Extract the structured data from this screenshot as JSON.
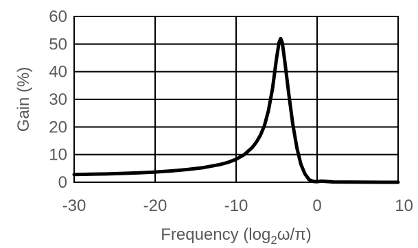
{
  "chart_data": {
    "type": "line",
    "title": "",
    "xlabel": {
      "main": "Frequency (log",
      "sub": "2",
      "rest": "ω/π)"
    },
    "ylabel": "Gain (%)",
    "xlim": [
      -30,
      10
    ],
    "ylim": [
      0,
      60
    ],
    "xticks": [
      -30,
      -20,
      -10,
      0,
      10
    ],
    "yticks": [
      0,
      10,
      20,
      30,
      40,
      50,
      60
    ],
    "xtick_labels": [
      "-30",
      "-20",
      "-10",
      "0",
      "10"
    ],
    "ytick_labels": [
      "0",
      "10",
      "20",
      "30",
      "40",
      "50",
      "60"
    ],
    "grid": true,
    "legend": "none",
    "series": [
      {
        "color": "#000000",
        "x": [
          -30,
          -28,
          -26,
          -24,
          -22,
          -20,
          -18,
          -16,
          -14,
          -12,
          -11,
          -10,
          -9,
          -8,
          -7.5,
          -7,
          -6.5,
          -6,
          -5.5,
          -5,
          -4.7,
          -4.5,
          -4.3,
          -4,
          -3.5,
          -3,
          -2.5,
          -2,
          -1.5,
          -1,
          -0.5,
          0,
          0.5,
          1,
          2,
          4,
          6,
          8,
          10
        ],
        "y": [
          2.8,
          2.9,
          3.0,
          3.2,
          3.4,
          3.7,
          4.1,
          4.6,
          5.3,
          6.4,
          7.2,
          8.3,
          10.0,
          12.6,
          14.5,
          17.0,
          20.5,
          26.0,
          34.0,
          45.0,
          50.5,
          52.0,
          50.5,
          44.0,
          32.0,
          21.0,
          12.5,
          6.5,
          3.0,
          1.0,
          0.3,
          0.2,
          0.4,
          0.3,
          0.1,
          0.05,
          0.02,
          0.01,
          0.0
        ]
      }
    ]
  }
}
